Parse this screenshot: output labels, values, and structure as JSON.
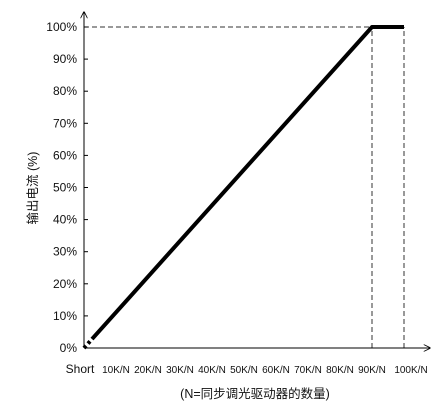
{
  "chart_data": {
    "type": "line",
    "ylabel": "输出电流 (%)",
    "xlabel": "(N=同步调光驱动器的数量)",
    "x_tick_labels": [
      "Short",
      "10K/N",
      "20K/N",
      "30K/N",
      "40K/N",
      "50K/N",
      "60K/N",
      "70K/N",
      "80K/N",
      "90K/N",
      "100K/N"
    ],
    "y_tick_labels": [
      "0%",
      "10%",
      "20%",
      "30%",
      "40%",
      "50%",
      "60%",
      "70%",
      "80%",
      "90%",
      "100%"
    ],
    "xlim": [
      0,
      100
    ],
    "ylim": [
      0,
      100
    ],
    "series": [
      {
        "points": [
          [
            0,
            0
          ],
          [
            90,
            100
          ],
          [
            100,
            100
          ]
        ],
        "color": "#000000",
        "dotted_start_until_x": 2
      }
    ],
    "reference_lines": [
      {
        "kind": "horizontal",
        "y": 100,
        "x_from": 0,
        "x_to": 90,
        "style": "dashed"
      },
      {
        "kind": "vertical",
        "x": 90,
        "y_from": 0,
        "y_to": 100,
        "style": "dashed"
      },
      {
        "kind": "vertical",
        "x": 100,
        "y_from": 0,
        "y_to": 100,
        "style": "dashed"
      }
    ],
    "grid": false,
    "legend": "none"
  }
}
